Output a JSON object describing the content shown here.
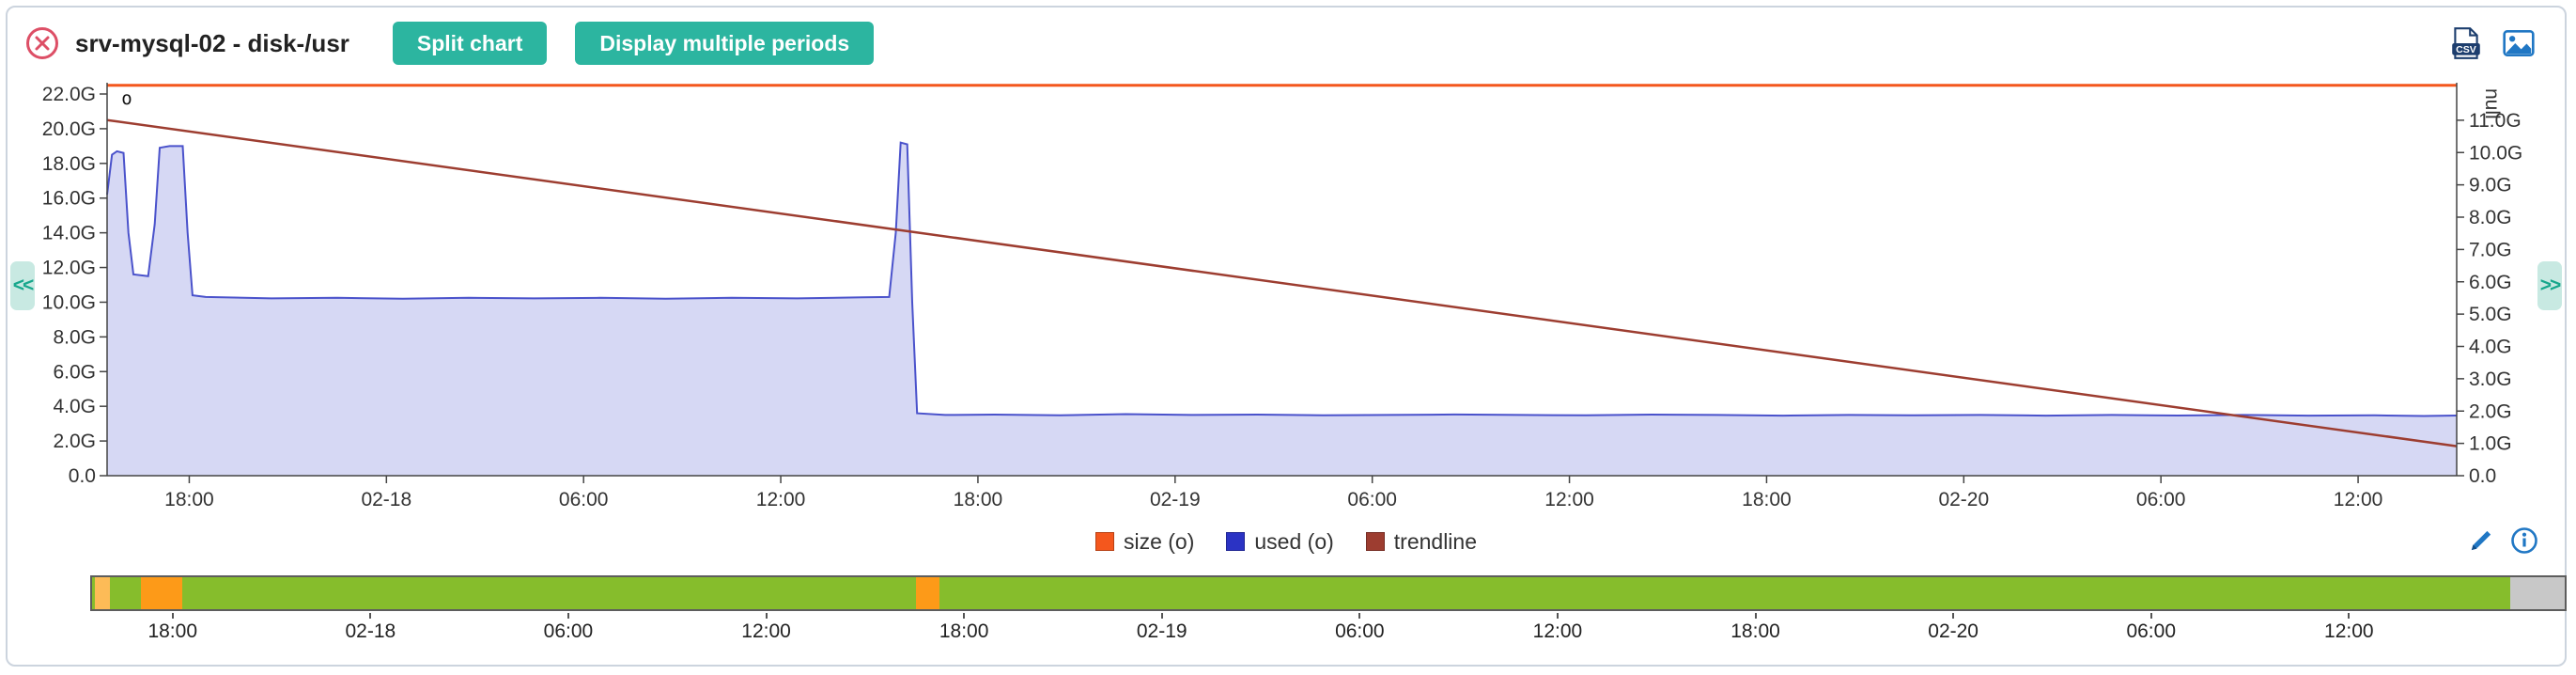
{
  "header": {
    "title": "srv-mysql-02 - disk-/usr",
    "split_chart_label": "Split chart",
    "multi_periods_label": "Display multiple periods"
  },
  "nav": {
    "prev": "<<",
    "next": ">>"
  },
  "chart_data": {
    "type": "area",
    "title": "",
    "t_range": [
      0,
      71.5
    ],
    "grid": false,
    "x_ticks": [
      {
        "t": 2.5,
        "label": "18:00"
      },
      {
        "t": 8.5,
        "label": "02-18"
      },
      {
        "t": 14.5,
        "label": "06:00"
      },
      {
        "t": 20.5,
        "label": "12:00"
      },
      {
        "t": 26.5,
        "label": "18:00"
      },
      {
        "t": 32.5,
        "label": "02-19"
      },
      {
        "t": 38.5,
        "label": "06:00"
      },
      {
        "t": 44.5,
        "label": "12:00"
      },
      {
        "t": 50.5,
        "label": "18:00"
      },
      {
        "t": 56.5,
        "label": "02-20"
      },
      {
        "t": 62.5,
        "label": "06:00"
      },
      {
        "t": 68.5,
        "label": "12:00"
      }
    ],
    "y_left": {
      "unit": "G",
      "range": [
        0,
        22
      ],
      "plot_max": 22.65,
      "ticks": [
        {
          "v": 0,
          "label": "0.0"
        },
        {
          "v": 2,
          "label": "2.0G"
        },
        {
          "v": 4,
          "label": "4.0G"
        },
        {
          "v": 6,
          "label": "6.0G"
        },
        {
          "v": 8,
          "label": "8.0G"
        },
        {
          "v": 10,
          "label": "10.0G"
        },
        {
          "v": 12,
          "label": "12.0G"
        },
        {
          "v": 14,
          "label": "14.0G"
        },
        {
          "v": 16,
          "label": "16.0G"
        },
        {
          "v": 18,
          "label": "18.0G"
        },
        {
          "v": 20,
          "label": "20.0G"
        },
        {
          "v": 22,
          "label": "22.0G"
        }
      ]
    },
    "y_right": {
      "unit": "G",
      "axis_label": "null",
      "range": [
        0,
        11
      ],
      "plot_max": 12.16,
      "ticks": [
        {
          "v": 0,
          "label": "0.0"
        },
        {
          "v": 1,
          "label": "1.0G"
        },
        {
          "v": 2,
          "label": "2.0G"
        },
        {
          "v": 3,
          "label": "3.0G"
        },
        {
          "v": 4,
          "label": "4.0G"
        },
        {
          "v": 5,
          "label": "5.0G"
        },
        {
          "v": 6,
          "label": "6.0G"
        },
        {
          "v": 7,
          "label": "7.0G"
        },
        {
          "v": 8,
          "label": "8.0G"
        },
        {
          "v": 9,
          "label": "9.0G"
        },
        {
          "v": 10,
          "label": "10.0G"
        },
        {
          "v": 11,
          "label": "11.0G"
        }
      ]
    },
    "series": [
      {
        "name": "used (o)",
        "type": "area",
        "stroke": "#4a52cb",
        "fill": "#d6d8f4",
        "points": [
          [
            0,
            16.2
          ],
          [
            0.15,
            18.5
          ],
          [
            0.3,
            18.7
          ],
          [
            0.5,
            18.6
          ],
          [
            0.65,
            14.0
          ],
          [
            0.8,
            11.6
          ],
          [
            1.25,
            11.5
          ],
          [
            1.45,
            14.5
          ],
          [
            1.6,
            18.9
          ],
          [
            1.9,
            19.0
          ],
          [
            2.3,
            19.0
          ],
          [
            2.45,
            14.0
          ],
          [
            2.6,
            10.4
          ],
          [
            3.0,
            10.3
          ],
          [
            5,
            10.22
          ],
          [
            7,
            10.25
          ],
          [
            9,
            10.2
          ],
          [
            11,
            10.25
          ],
          [
            13,
            10.22
          ],
          [
            15,
            10.25
          ],
          [
            17,
            10.2
          ],
          [
            19,
            10.25
          ],
          [
            21,
            10.22
          ],
          [
            23,
            10.28
          ],
          [
            23.8,
            10.3
          ],
          [
            24.0,
            14.0
          ],
          [
            24.15,
            19.2
          ],
          [
            24.35,
            19.1
          ],
          [
            24.5,
            10.0
          ],
          [
            24.65,
            3.6
          ],
          [
            25.5,
            3.5
          ],
          [
            27,
            3.52
          ],
          [
            29,
            3.48
          ],
          [
            31,
            3.55
          ],
          [
            33,
            3.5
          ],
          [
            35,
            3.52
          ],
          [
            37,
            3.48
          ],
          [
            39,
            3.5
          ],
          [
            41,
            3.53
          ],
          [
            43,
            3.5
          ],
          [
            45,
            3.48
          ],
          [
            47,
            3.52
          ],
          [
            49,
            3.5
          ],
          [
            51,
            3.46
          ],
          [
            53,
            3.5
          ],
          [
            55,
            3.48
          ],
          [
            57,
            3.5
          ],
          [
            59,
            3.46
          ],
          [
            61,
            3.5
          ],
          [
            63,
            3.47
          ],
          [
            65,
            3.5
          ],
          [
            67,
            3.46
          ],
          [
            69,
            3.48
          ],
          [
            70.5,
            3.44
          ],
          [
            71.5,
            3.47
          ]
        ]
      },
      {
        "name": "trendline",
        "type": "line",
        "color": "#9d3d30",
        "width": 2.5,
        "points": [
          [
            0,
            20.5
          ],
          [
            71.5,
            1.7
          ]
        ]
      },
      {
        "name": "size (o)",
        "type": "line",
        "color": "#f4571d",
        "width": 3,
        "points": [
          [
            0,
            22.5
          ],
          [
            71.5,
            22.5
          ]
        ]
      }
    ],
    "annotations": [
      {
        "t": 0.6,
        "v": 21.4,
        "label": "o"
      }
    ]
  },
  "legend": {
    "items": [
      {
        "label": "size (o)",
        "color": "#f4571d"
      },
      {
        "label": "used (o)",
        "color": "#2b33c4"
      },
      {
        "label": "trendline",
        "color": "#9d3d30"
      }
    ]
  },
  "timeline": {
    "t_range": [
      0,
      75.1
    ],
    "segments": [
      {
        "from": 0.0,
        "to": 0.0013,
        "color": "#86bd2c"
      },
      {
        "from": 0.0013,
        "to": 0.0073,
        "color": "#fdbb57"
      },
      {
        "from": 0.0073,
        "to": 0.0199,
        "color": "#86bd2c"
      },
      {
        "from": 0.0199,
        "to": 0.0365,
        "color": "#fd9a18"
      },
      {
        "from": 0.0365,
        "to": 0.3333,
        "color": "#86bd2c"
      },
      {
        "from": 0.3333,
        "to": 0.3426,
        "color": "#fd9a18"
      },
      {
        "from": 0.3426,
        "to": 0.9781,
        "color": "#86bd2c"
      },
      {
        "from": 0.9781,
        "to": 1.0,
        "color": "#c8c8c8"
      }
    ],
    "ticks": [
      {
        "t": 2.5,
        "label": "18:00"
      },
      {
        "t": 8.5,
        "label": "02-18"
      },
      {
        "t": 14.5,
        "label": "06:00"
      },
      {
        "t": 20.5,
        "label": "12:00"
      },
      {
        "t": 26.5,
        "label": "18:00"
      },
      {
        "t": 32.5,
        "label": "02-19"
      },
      {
        "t": 38.5,
        "label": "06:00"
      },
      {
        "t": 44.5,
        "label": "12:00"
      },
      {
        "t": 50.5,
        "label": "18:00"
      },
      {
        "t": 56.5,
        "label": "02-20"
      },
      {
        "t": 62.5,
        "label": "06:00"
      },
      {
        "t": 68.5,
        "label": "12:00"
      }
    ]
  }
}
